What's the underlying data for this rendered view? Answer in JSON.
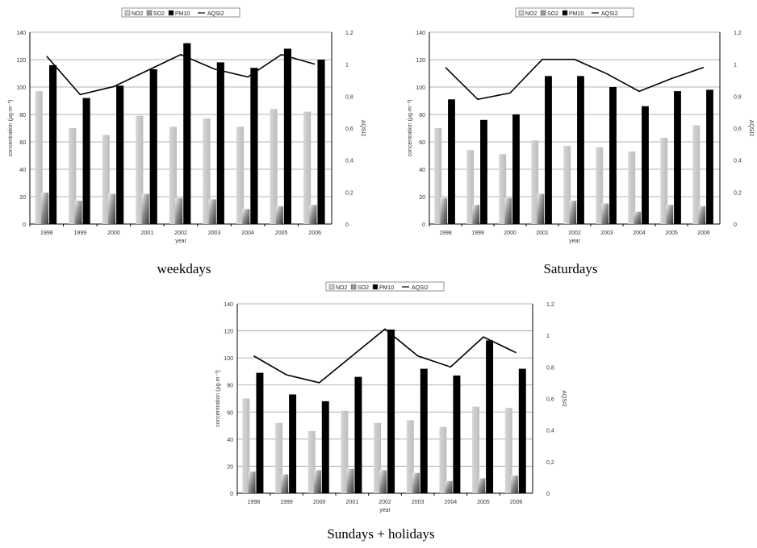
{
  "legend_labels": [
    "NO2",
    "SO2",
    "PM10",
    "AQSI2"
  ],
  "colors": {
    "NO2": "#c8c8c8",
    "SO2": "#8c8c8c",
    "PM10": "#000000",
    "AQSI2": "#000000"
  },
  "chart_data": [
    {
      "type": "bar",
      "caption": "weekdays",
      "categories": [
        "1998",
        "1999",
        "2000",
        "2001",
        "2002",
        "2003",
        "2004",
        "2005",
        "2006"
      ],
      "xlabel": "year",
      "ylabel": "concentration (μg·m⁻³)",
      "y2label": "AQSI2",
      "ylim": [
        0,
        140
      ],
      "y2lim": [
        0,
        1.2
      ],
      "yticks": [
        "0",
        "20",
        "40",
        "60",
        "80",
        "100",
        "120",
        "140"
      ],
      "y2ticks": [
        "0",
        "0,2",
        "0,4",
        "0,6",
        "0,8",
        "1",
        "1,2"
      ],
      "legend": "top",
      "series": [
        {
          "name": "NO2",
          "values": [
            97,
            70,
            65,
            79,
            71,
            77,
            71,
            84,
            82
          ]
        },
        {
          "name": "SO2",
          "values": [
            23,
            17,
            22,
            22,
            19,
            18,
            11,
            13,
            14
          ]
        },
        {
          "name": "PM10",
          "values": [
            116,
            92,
            101,
            113,
            132,
            118,
            114,
            128,
            120
          ]
        },
        {
          "name": "AQSI2",
          "axis": "right",
          "values": [
            1.05,
            0.81,
            0.86,
            0.96,
            1.06,
            0.97,
            0.92,
            1.06,
            1.0
          ]
        }
      ]
    },
    {
      "type": "bar",
      "caption": "Saturdays",
      "categories": [
        "1998",
        "1999",
        "2000",
        "2001",
        "2002",
        "2003",
        "2004",
        "2005",
        "2006"
      ],
      "xlabel": "year",
      "ylabel": "concentration (μg·m⁻³)",
      "y2label": "AQSI2",
      "ylim": [
        0,
        140
      ],
      "y2lim": [
        0,
        1.2
      ],
      "yticks": [
        "0",
        "20",
        "40",
        "60",
        "80",
        "100",
        "120",
        "140"
      ],
      "y2ticks": [
        "0",
        "0,2",
        "0,4",
        "0,6",
        "0,8",
        "1",
        "1,2"
      ],
      "legend": "top",
      "series": [
        {
          "name": "NO2",
          "values": [
            70,
            54,
            51,
            61,
            57,
            56,
            53,
            63,
            72
          ]
        },
        {
          "name": "SO2",
          "values": [
            19,
            14,
            19,
            22,
            17,
            15,
            9,
            14,
            13
          ]
        },
        {
          "name": "PM10",
          "values": [
            91,
            76,
            80,
            108,
            108,
            100,
            86,
            97,
            98
          ]
        },
        {
          "name": "AQSI2",
          "axis": "right",
          "values": [
            0.98,
            0.78,
            0.82,
            1.03,
            1.03,
            0.94,
            0.83,
            0.91,
            0.98
          ]
        }
      ]
    },
    {
      "type": "bar",
      "caption": "Sundays + holidays",
      "categories": [
        "1998",
        "1999",
        "2000",
        "2001",
        "2002",
        "2003",
        "2004",
        "2005",
        "2006"
      ],
      "xlabel": "year",
      "ylabel": "concentration (μg·m⁻³)",
      "y2label": "AQSI2",
      "ylim": [
        0,
        140
      ],
      "y2lim": [
        0,
        1.2
      ],
      "yticks": [
        "0",
        "20",
        "40",
        "60",
        "80",
        "100",
        "120",
        "140"
      ],
      "y2ticks": [
        "0",
        "0,2",
        "0,4",
        "0,6",
        "0,8",
        "1",
        "1,2"
      ],
      "legend": "top",
      "series": [
        {
          "name": "NO2",
          "values": [
            70,
            52,
            46,
            61,
            52,
            54,
            49,
            64,
            63
          ]
        },
        {
          "name": "SO2",
          "values": [
            16,
            14,
            17,
            18,
            17,
            15,
            9,
            11,
            13
          ]
        },
        {
          "name": "PM10",
          "values": [
            89,
            73,
            68,
            86,
            121,
            92,
            87,
            113,
            92
          ]
        },
        {
          "name": "AQSI2",
          "axis": "right",
          "values": [
            0.87,
            0.75,
            0.7,
            0.87,
            1.04,
            0.87,
            0.8,
            0.99,
            0.89
          ]
        }
      ]
    }
  ]
}
